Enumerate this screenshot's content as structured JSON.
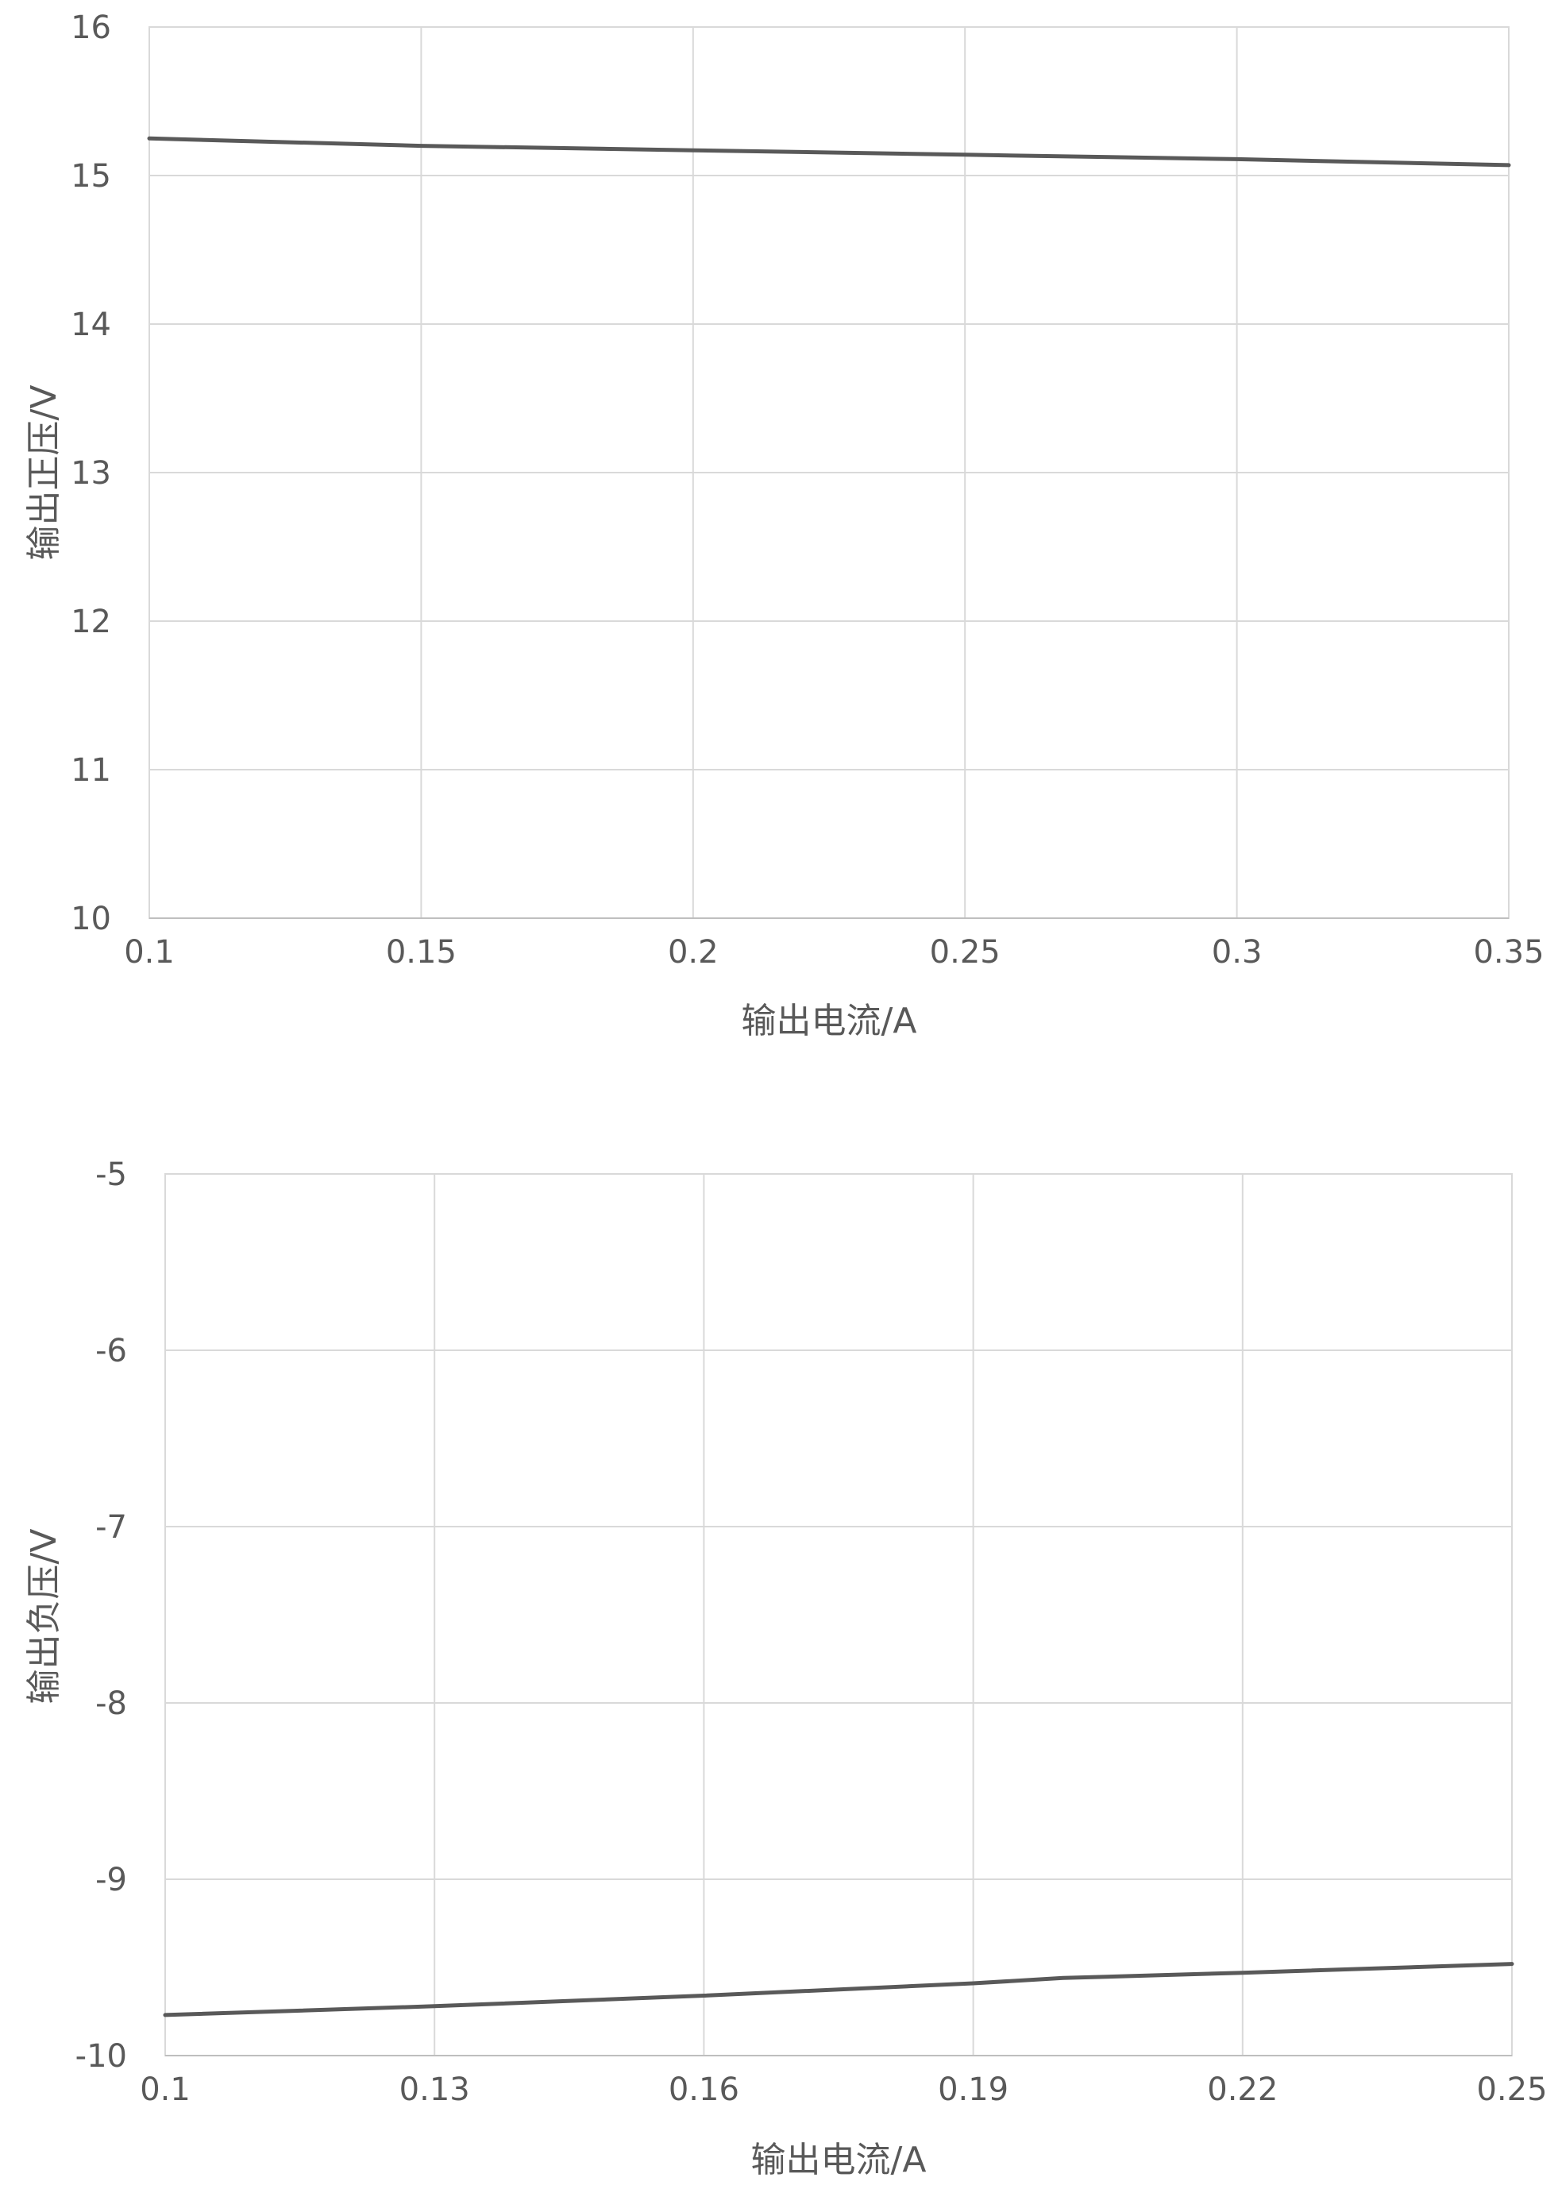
{
  "chart_data": [
    {
      "type": "line",
      "title": "",
      "xlabel": "输出电流/A",
      "ylabel": "输出正压/V",
      "xlim": [
        0.1,
        0.35
      ],
      "ylim": [
        10,
        16
      ],
      "xticks": [
        "0.1",
        "0.15",
        "0.2",
        "0.25",
        "0.3",
        "0.35"
      ],
      "yticks": [
        "10",
        "11",
        "12",
        "13",
        "14",
        "15",
        "16"
      ],
      "grid": true,
      "legend": "none",
      "series": [
        {
          "x": [
            0.1,
            0.15,
            0.2,
            0.25,
            0.3,
            0.35
          ],
          "y": [
            15.25,
            15.2,
            15.17,
            15.14,
            15.11,
            15.07
          ]
        }
      ],
      "line_color": "#595959"
    },
    {
      "type": "line",
      "title": "",
      "xlabel": "输出电流/A",
      "ylabel": "输出负压/V",
      "xlim": [
        0.1,
        0.25
      ],
      "ylim": [
        -10,
        -5
      ],
      "xticks": [
        "0.1",
        "0.13",
        "0.16",
        "0.19",
        "0.22",
        "0.25"
      ],
      "yticks": [
        "-10",
        "-9",
        "-8",
        "-7",
        "-6",
        "-5"
      ],
      "grid": true,
      "legend": "none",
      "series": [
        {
          "x": [
            0.1,
            0.13,
            0.16,
            0.19,
            0.2,
            0.22,
            0.25
          ],
          "y": [
            -9.77,
            -9.72,
            -9.66,
            -9.59,
            -9.56,
            -9.53,
            -9.48
          ]
        }
      ],
      "line_color": "#595959"
    }
  ]
}
